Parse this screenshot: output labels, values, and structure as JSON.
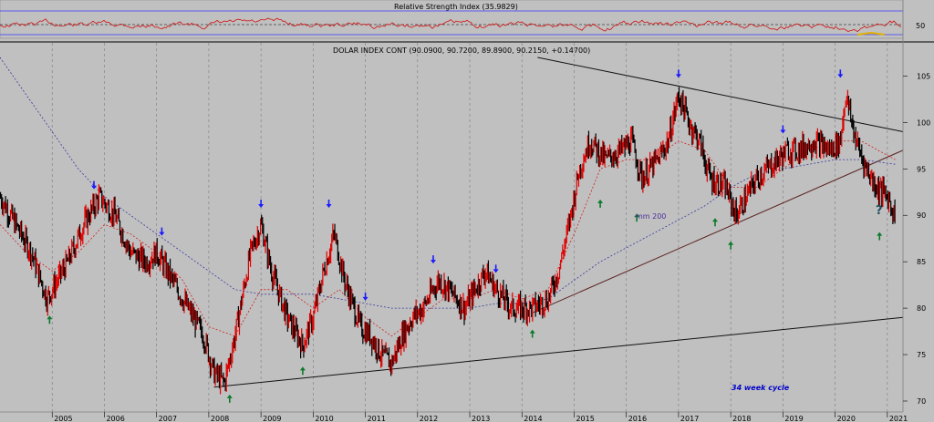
{
  "chart_data": {
    "type": "candlestick",
    "title": "DOLAR INDEX CONT (90.0900, 90.7200, 89.8900, 90.2150, +0.14700)",
    "indicator_title": "Relative Strength Index (35.9829)",
    "indicator_axis_label": "50",
    "ma_label": "mm 200",
    "annotation": "34 week cycle",
    "question_mark": "?",
    "x_ticks": [
      "2005",
      "2006",
      "2007",
      "2008",
      "2009",
      "2010",
      "2011",
      "2012",
      "2013",
      "2014",
      "2015",
      "2016",
      "2017",
      "2018",
      "2019",
      "2020",
      "2021"
    ],
    "y_ticks": [
      "70",
      "75",
      "80",
      "85",
      "90",
      "95",
      "100",
      "105"
    ],
    "ylim": [
      70,
      107
    ],
    "xlim": [
      2004.0,
      2021.3
    ],
    "price_path": [
      [
        2004.0,
        92
      ],
      [
        2004.3,
        89
      ],
      [
        2004.6,
        86
      ],
      [
        2004.9,
        81
      ],
      [
        2005.0,
        82
      ],
      [
        2005.3,
        85
      ],
      [
        2005.6,
        89
      ],
      [
        2005.9,
        92
      ],
      [
        2006.2,
        90
      ],
      [
        2006.5,
        86
      ],
      [
        2006.8,
        85
      ],
      [
        2007.0,
        86
      ],
      [
        2007.3,
        83
      ],
      [
        2007.6,
        80
      ],
      [
        2007.9,
        77
      ],
      [
        2008.1,
        73
      ],
      [
        2008.3,
        72
      ],
      [
        2008.5,
        77
      ],
      [
        2008.8,
        86
      ],
      [
        2009.0,
        89
      ],
      [
        2009.2,
        84
      ],
      [
        2009.5,
        79
      ],
      [
        2009.8,
        76
      ],
      [
        2010.0,
        79
      ],
      [
        2010.2,
        84
      ],
      [
        2010.4,
        88
      ],
      [
        2010.6,
        83
      ],
      [
        2010.9,
        78
      ],
      [
        2011.1,
        77
      ],
      [
        2011.3,
        75
      ],
      [
        2011.5,
        74
      ],
      [
        2011.7,
        77
      ],
      [
        2011.9,
        79
      ],
      [
        2012.1,
        80
      ],
      [
        2012.4,
        83
      ],
      [
        2012.6,
        82
      ],
      [
        2012.9,
        80
      ],
      [
        2013.1,
        82
      ],
      [
        2013.3,
        84
      ],
      [
        2013.5,
        82
      ],
      [
        2013.8,
        80
      ],
      [
        2014.0,
        80
      ],
      [
        2014.2,
        80
      ],
      [
        2014.5,
        81
      ],
      [
        2014.7,
        84
      ],
      [
        2014.9,
        89
      ],
      [
        2015.1,
        95
      ],
      [
        2015.3,
        98
      ],
      [
        2015.6,
        96
      ],
      [
        2015.9,
        97
      ],
      [
        2016.1,
        98
      ],
      [
        2016.3,
        94
      ],
      [
        2016.6,
        96
      ],
      [
        2016.8,
        98
      ],
      [
        2017.0,
        103
      ],
      [
        2017.2,
        100
      ],
      [
        2017.4,
        98
      ],
      [
        2017.6,
        94
      ],
      [
        2017.9,
        93
      ],
      [
        2018.1,
        90
      ],
      [
        2018.3,
        92
      ],
      [
        2018.5,
        94
      ],
      [
        2018.7,
        95
      ],
      [
        2018.9,
        96
      ],
      [
        2019.1,
        97
      ],
      [
        2019.3,
        97
      ],
      [
        2019.6,
        98
      ],
      [
        2019.9,
        97
      ],
      [
        2020.1,
        98
      ],
      [
        2020.2,
        103
      ],
      [
        2020.4,
        98
      ],
      [
        2020.6,
        95
      ],
      [
        2020.8,
        93
      ],
      [
        2021.0,
        92
      ],
      [
        2021.15,
        90
      ]
    ],
    "ma200_path": [
      [
        2004.0,
        107
      ],
      [
        2004.5,
        103
      ],
      [
        2005.0,
        99
      ],
      [
        2005.5,
        95
      ],
      [
        2006.0,
        92
      ],
      [
        2006.5,
        90
      ],
      [
        2007.0,
        88
      ],
      [
        2007.5,
        86
      ],
      [
        2008.0,
        84
      ],
      [
        2008.5,
        82
      ],
      [
        2009.0,
        81.5
      ],
      [
        2009.5,
        81.5
      ],
      [
        2010.0,
        81.5
      ],
      [
        2010.5,
        81
      ],
      [
        2011.0,
        80.5
      ],
      [
        2011.5,
        80
      ],
      [
        2012.0,
        80
      ],
      [
        2012.5,
        80
      ],
      [
        2013.0,
        80
      ],
      [
        2013.5,
        80.5
      ],
      [
        2014.0,
        80.5
      ],
      [
        2014.5,
        81
      ],
      [
        2015.0,
        83
      ],
      [
        2015.5,
        85
      ],
      [
        2016.0,
        86.5
      ],
      [
        2016.5,
        88
      ],
      [
        2017.0,
        89.5
      ],
      [
        2017.5,
        91
      ],
      [
        2018.0,
        93
      ],
      [
        2018.5,
        94.5
      ],
      [
        2019.0,
        95
      ],
      [
        2019.5,
        95.5
      ],
      [
        2020.0,
        96
      ],
      [
        2020.5,
        96
      ],
      [
        2021.15,
        95.5
      ]
    ],
    "ma_short_path": [
      [
        2004.0,
        89
      ],
      [
        2004.5,
        86
      ],
      [
        2005.0,
        84
      ],
      [
        2005.5,
        86
      ],
      [
        2006.0,
        89
      ],
      [
        2006.5,
        88
      ],
      [
        2007.0,
        86
      ],
      [
        2007.5,
        83
      ],
      [
        2008.0,
        78
      ],
      [
        2008.5,
        77
      ],
      [
        2009.0,
        82
      ],
      [
        2009.5,
        82
      ],
      [
        2010.0,
        80
      ],
      [
        2010.5,
        82
      ],
      [
        2011.0,
        79
      ],
      [
        2011.5,
        77
      ],
      [
        2012.0,
        79
      ],
      [
        2012.5,
        81
      ],
      [
        2013.0,
        81
      ],
      [
        2013.5,
        82
      ],
      [
        2014.0,
        81
      ],
      [
        2014.5,
        82
      ],
      [
        2015.0,
        88
      ],
      [
        2015.5,
        95
      ],
      [
        2016.0,
        96
      ],
      [
        2016.5,
        96
      ],
      [
        2017.0,
        98
      ],
      [
        2017.5,
        97
      ],
      [
        2018.0,
        93
      ],
      [
        2018.5,
        93
      ],
      [
        2019.0,
        95
      ],
      [
        2019.5,
        97
      ],
      [
        2020.0,
        98
      ],
      [
        2020.5,
        98
      ],
      [
        2021.15,
        96
      ]
    ],
    "trendlines": [
      {
        "from": [
          2008.1,
          71.5
        ],
        "to": [
          2021.3,
          79
        ]
      },
      {
        "from": [
          2014.2,
          79.5
        ],
        "to": [
          2021.3,
          97
        ]
      },
      {
        "from": [
          2014.3,
          107
        ],
        "to": [
          2021.3,
          99
        ]
      }
    ],
    "arrows_down": [
      [
        2005.8,
        93
      ],
      [
        2007.1,
        88
      ],
      [
        2009.0,
        91
      ],
      [
        2010.3,
        91
      ],
      [
        2011.0,
        81
      ],
      [
        2012.3,
        85
      ],
      [
        2013.5,
        84
      ],
      [
        2017.0,
        105
      ],
      [
        2019.0,
        99
      ],
      [
        2020.1,
        105
      ]
    ],
    "arrows_up": [
      [
        2004.95,
        79
      ],
      [
        2008.4,
        70.5
      ],
      [
        2009.8,
        73.5
      ],
      [
        2014.2,
        77.5
      ],
      [
        2015.5,
        91.5
      ],
      [
        2016.2,
        90
      ],
      [
        2017.7,
        89.5
      ],
      [
        2018.0,
        87
      ],
      [
        2020.85,
        88
      ]
    ],
    "rsi_levels": [
      70,
      50,
      30
    ]
  }
}
